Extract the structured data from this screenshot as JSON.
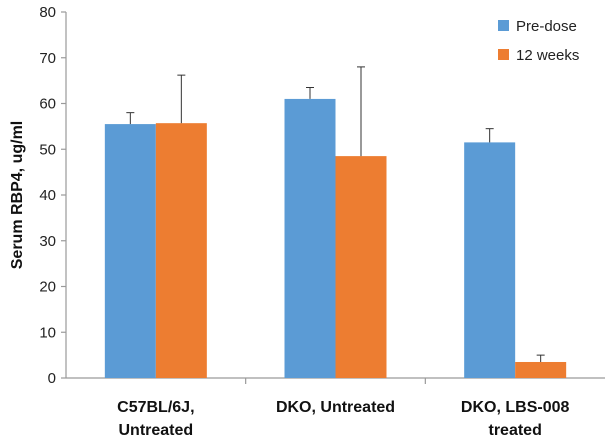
{
  "chart_data": {
    "type": "bar",
    "title": "",
    "xlabel": "",
    "ylabel": "Serum RBP4, ug/ml",
    "ylim": [
      0,
      80
    ],
    "yticks": [
      0,
      10,
      20,
      30,
      40,
      50,
      60,
      70,
      80
    ],
    "categories": [
      [
        "C57BL/6J,",
        "Untreated"
      ],
      [
        "DKO, Untreated"
      ],
      [
        "DKO, LBS-008",
        "treated"
      ]
    ],
    "series": [
      {
        "name": "Pre-dose",
        "color": "#5b9bd5",
        "values": [
          55.5,
          61,
          51.5
        ],
        "error": [
          2.5,
          2.5,
          3
        ]
      },
      {
        "name": "12 weeks",
        "color": "#ed7d31",
        "values": [
          55.7,
          48.5,
          3.5
        ],
        "error": [
          10.5,
          19.5,
          1.5
        ]
      }
    ],
    "grid": false,
    "legend_position": "top-right"
  }
}
